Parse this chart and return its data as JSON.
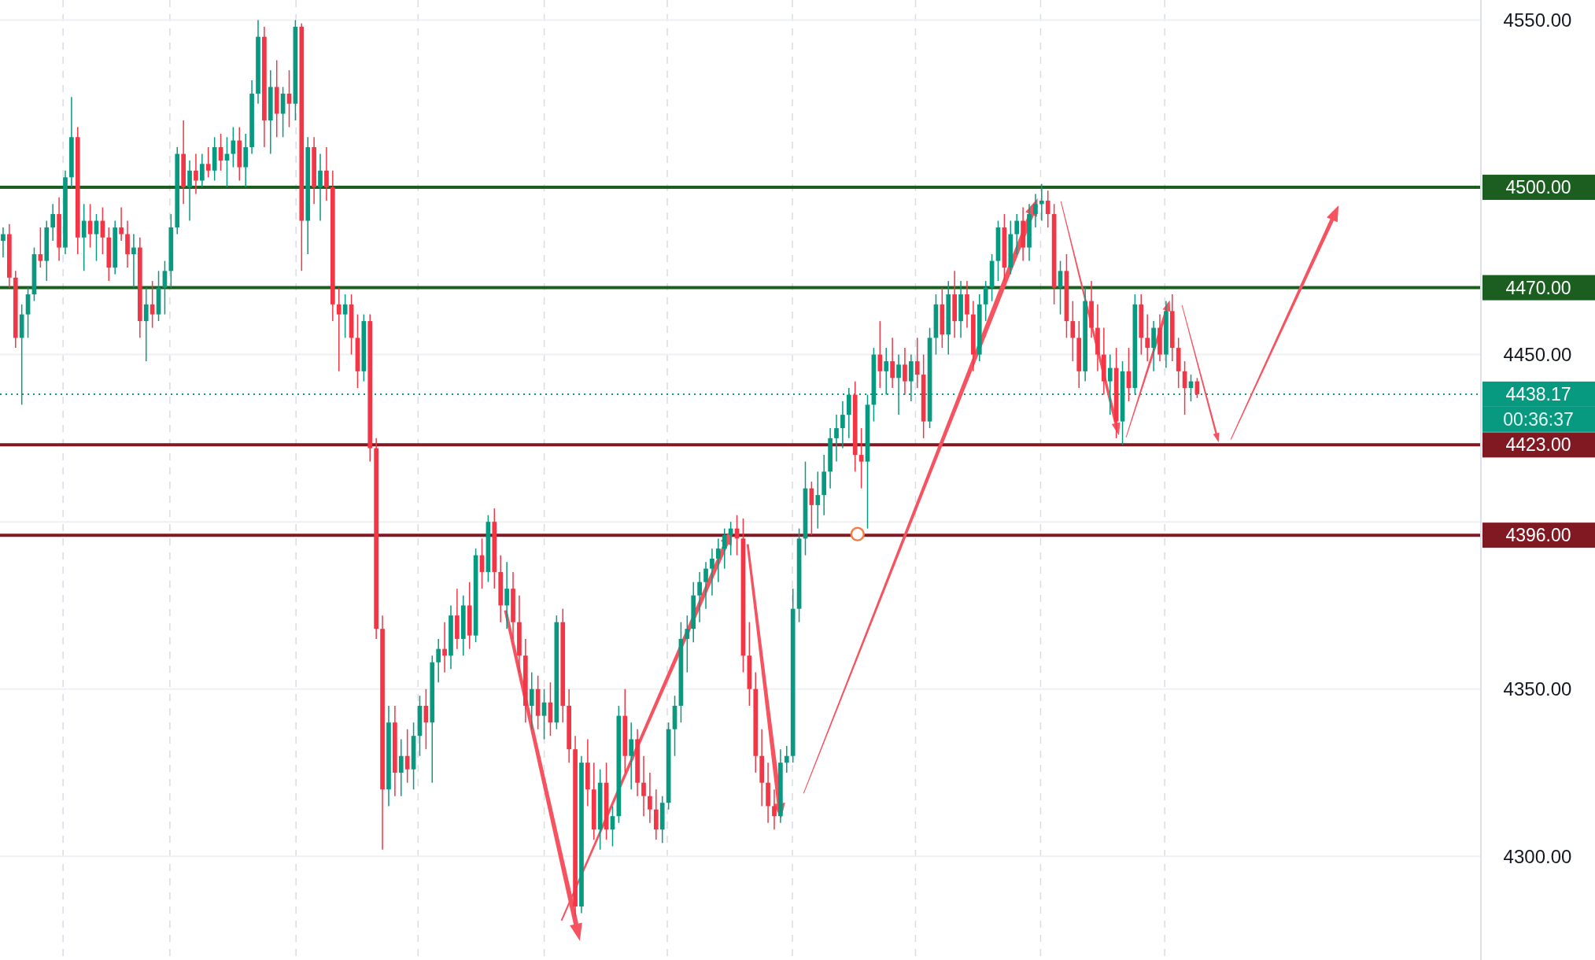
{
  "chart_data": {
    "type": "candlestick",
    "categories": [
      null,
      null,
      null,
      null,
      null,
      null,
      null,
      null,
      null,
      null,
      null,
      null,
      null,
      null,
      null,
      null,
      null,
      null,
      null,
      null,
      null,
      null,
      null,
      null,
      null,
      null,
      null,
      null,
      null,
      null,
      null,
      null,
      null,
      null,
      null,
      null,
      null,
      null,
      null,
      null,
      null,
      null,
      null,
      null,
      null,
      null,
      null,
      null,
      null,
      null,
      null,
      null,
      null,
      null,
      null,
      null,
      null,
      null,
      null,
      null,
      null,
      null,
      null,
      null,
      null,
      null,
      null,
      null,
      null,
      null,
      null,
      null,
      null,
      null,
      null,
      null,
      null,
      null,
      null,
      null,
      null,
      null,
      null,
      null,
      null,
      null,
      null,
      null,
      null,
      null,
      null,
      null,
      null,
      null,
      null,
      null,
      null,
      null,
      null,
      null,
      null,
      null,
      null,
      null,
      null,
      null,
      null,
      null,
      null,
      null,
      null,
      null,
      null,
      null,
      null,
      null,
      null,
      null,
      null,
      null,
      null,
      null,
      null,
      null,
      null,
      null,
      null,
      null,
      null,
      null,
      null,
      null,
      null,
      null,
      null,
      null,
      null,
      null,
      null,
      null,
      null,
      null,
      null,
      null,
      null,
      null,
      null,
      null,
      null,
      null,
      null,
      null,
      null,
      null,
      null,
      null,
      null,
      null,
      null,
      null,
      null,
      null,
      null,
      null,
      null,
      null,
      null,
      null,
      null,
      null,
      null,
      null,
      null,
      null,
      null,
      null,
      null,
      null,
      null,
      null,
      null,
      null,
      null,
      null,
      null,
      null,
      null,
      null,
      null,
      null,
      null,
      null,
      null,
      null,
      null,
      null,
      null,
      null,
      null,
      null,
      null,
      null,
      null,
      null,
      null,
      null,
      null,
      null,
      null,
      null,
      null,
      null,
      null,
      null,
      null,
      null,
      null,
      null,
      null,
      null,
      null,
      null,
      null,
      null,
      null,
      null,
      null,
      null,
      null,
      null,
      null,
      null,
      null,
      null,
      null,
      null,
      null,
      null
    ],
    "ohlc": [
      [
        4484,
        4488,
        4479,
        4486
      ],
      [
        4486,
        4489,
        4470,
        4473
      ],
      [
        4473,
        4475,
        4452,
        4455
      ],
      [
        4455,
        4465,
        4435,
        4462
      ],
      [
        4462,
        4470,
        4455,
        4468
      ],
      [
        4468,
        4482,
        4466,
        4480
      ],
      [
        4480,
        4488,
        4476,
        4478
      ],
      [
        4478,
        4490,
        4472,
        4488
      ],
      [
        4488,
        4495,
        4484,
        4492
      ],
      [
        4492,
        4497,
        4478,
        4482
      ],
      [
        4482,
        4505,
        4480,
        4503
      ],
      [
        4503,
        4527,
        4500,
        4515
      ],
      [
        4515,
        4518,
        4480,
        4485
      ],
      [
        4485,
        4495,
        4475,
        4490
      ],
      [
        4490,
        4495,
        4482,
        4486
      ],
      [
        4486,
        4492,
        4478,
        4490
      ],
      [
        4490,
        4494,
        4480,
        4485
      ],
      [
        4485,
        4488,
        4472,
        4476
      ],
      [
        4476,
        4490,
        4474,
        4488
      ],
      [
        4488,
        4494,
        4484,
        4486
      ],
      [
        4486,
        4490,
        4476,
        4480
      ],
      [
        4480,
        4486,
        4470,
        4482
      ],
      [
        4482,
        4485,
        4455,
        4460
      ],
      [
        4460,
        4470,
        4448,
        4465
      ],
      [
        4465,
        4472,
        4458,
        4462
      ],
      [
        4462,
        4475,
        4460,
        4470
      ],
      [
        4470,
        4478,
        4462,
        4475
      ],
      [
        4475,
        4492,
        4470,
        4488
      ],
      [
        4488,
        4512,
        4486,
        4510
      ],
      [
        4510,
        4520,
        4495,
        4500
      ],
      [
        4500,
        4508,
        4490,
        4505
      ],
      [
        4505,
        4510,
        4498,
        4502
      ],
      [
        4502,
        4510,
        4500,
        4507
      ],
      [
        4507,
        4512,
        4503,
        4505
      ],
      [
        4505,
        4515,
        4502,
        4512
      ],
      [
        4512,
        4516,
        4505,
        4508
      ],
      [
        4508,
        4515,
        4500,
        4510
      ],
      [
        4510,
        4518,
        4506,
        4514
      ],
      [
        4514,
        4518,
        4502,
        4506
      ],
      [
        4506,
        4516,
        4500,
        4512
      ],
      [
        4512,
        4532,
        4510,
        4528
      ],
      [
        4528,
        4550,
        4525,
        4545
      ],
      [
        4545,
        4548,
        4512,
        4520
      ],
      [
        4520,
        4535,
        4510,
        4530
      ],
      [
        4530,
        4538,
        4515,
        4522
      ],
      [
        4522,
        4530,
        4515,
        4528
      ],
      [
        4528,
        4535,
        4518,
        4525
      ],
      [
        4525,
        4550,
        4520,
        4548
      ],
      [
        4548,
        4549,
        4475,
        4490
      ],
      [
        4490,
        4515,
        4480,
        4512
      ],
      [
        4512,
        4515,
        4495,
        4500
      ],
      [
        4500,
        4510,
        4490,
        4505
      ],
      [
        4505,
        4512,
        4496,
        4500
      ],
      [
        4500,
        4505,
        4460,
        4465
      ],
      [
        4465,
        4470,
        4445,
        4462
      ],
      [
        4462,
        4468,
        4455,
        4465
      ],
      [
        4465,
        4468,
        4450,
        4455
      ],
      [
        4455,
        4462,
        4440,
        4445
      ],
      [
        4445,
        4462,
        4442,
        4460
      ],
      [
        4460,
        4462,
        4418,
        4422
      ],
      [
        4422,
        4425,
        4365,
        4368
      ],
      [
        4368,
        4372,
        4302,
        4320
      ],
      [
        4320,
        4345,
        4315,
        4340
      ],
      [
        4340,
        4345,
        4318,
        4325
      ],
      [
        4325,
        4335,
        4318,
        4330
      ],
      [
        4330,
        4338,
        4322,
        4326
      ],
      [
        4326,
        4340,
        4320,
        4336
      ],
      [
        4336,
        4348,
        4330,
        4345
      ],
      [
        4345,
        4350,
        4332,
        4340
      ],
      [
        4340,
        4360,
        4322,
        4358
      ],
      [
        4358,
        4365,
        4352,
        4362
      ],
      [
        4362,
        4370,
        4355,
        4360
      ],
      [
        4360,
        4375,
        4356,
        4372
      ],
      [
        4372,
        4380,
        4362,
        4365
      ],
      [
        4365,
        4378,
        4360,
        4375
      ],
      [
        4375,
        4382,
        4362,
        4366
      ],
      [
        4366,
        4392,
        4364,
        4390
      ],
      [
        4390,
        4395,
        4380,
        4385
      ],
      [
        4385,
        4402,
        4382,
        4400
      ],
      [
        4400,
        4404,
        4380,
        4385
      ],
      [
        4385,
        4390,
        4370,
        4375
      ],
      [
        4375,
        4388,
        4368,
        4380
      ],
      [
        4380,
        4385,
        4365,
        4370
      ],
      [
        4370,
        4378,
        4355,
        4360
      ],
      [
        4360,
        4365,
        4340,
        4345
      ],
      [
        4345,
        4355,
        4338,
        4350
      ],
      [
        4350,
        4354,
        4338,
        4342
      ],
      [
        4342,
        4350,
        4335,
        4346
      ],
      [
        4346,
        4352,
        4336,
        4340
      ],
      [
        4340,
        4372,
        4338,
        4370
      ],
      [
        4370,
        4374,
        4340,
        4345
      ],
      [
        4345,
        4350,
        4328,
        4332
      ],
      [
        4332,
        4336,
        4282,
        4285
      ],
      [
        4285,
        4330,
        4283,
        4328
      ],
      [
        4328,
        4335,
        4315,
        4320
      ],
      [
        4320,
        4328,
        4305,
        4308
      ],
      [
        4308,
        4326,
        4302,
        4322
      ],
      [
        4322,
        4328,
        4305,
        4308
      ],
      [
        4308,
        4315,
        4303,
        4312
      ],
      [
        4312,
        4345,
        4310,
        4342
      ],
      [
        4342,
        4350,
        4325,
        4330
      ],
      [
        4330,
        4340,
        4320,
        4335
      ],
      [
        4335,
        4338,
        4318,
        4322
      ],
      [
        4322,
        4330,
        4312,
        4318
      ],
      [
        4318,
        4325,
        4310,
        4314
      ],
      [
        4314,
        4320,
        4305,
        4308
      ],
      [
        4308,
        4318,
        4304,
        4316
      ],
      [
        4316,
        4340,
        4314,
        4338
      ],
      [
        4338,
        4348,
        4330,
        4345
      ],
      [
        4345,
        4370,
        4340,
        4365
      ],
      [
        4365,
        4372,
        4355,
        4368
      ],
      [
        4368,
        4382,
        4364,
        4378
      ],
      [
        4378,
        4385,
        4370,
        4382
      ],
      [
        4382,
        4388,
        4374,
        4386
      ],
      [
        4386,
        4392,
        4378,
        4389
      ],
      [
        4389,
        4395,
        4382,
        4392
      ],
      [
        4392,
        4398,
        4386,
        4396
      ],
      [
        4396,
        4400,
        4390,
        4398
      ],
      [
        4398,
        4402,
        4390,
        4395
      ],
      [
        4395,
        4401,
        4355,
        4360
      ],
      [
        4360,
        4370,
        4345,
        4350
      ],
      [
        4350,
        4355,
        4325,
        4330
      ],
      [
        4330,
        4338,
        4315,
        4322
      ],
      [
        4322,
        4328,
        4310,
        4315
      ],
      [
        4315,
        4320,
        4308,
        4312
      ],
      [
        4312,
        4332,
        4310,
        4328
      ],
      [
        4328,
        4333,
        4325,
        4330
      ],
      [
        4330,
        4380,
        4328,
        4374
      ],
      [
        4374,
        4398,
        4370,
        4395
      ],
      [
        4395,
        4418,
        4390,
        4410
      ],
      [
        4410,
        4412,
        4396,
        4405
      ],
      [
        4405,
        4415,
        4398,
        4408
      ],
      [
        4408,
        4420,
        4402,
        4415
      ],
      [
        4415,
        4428,
        4410,
        4425
      ],
      [
        4425,
        4432,
        4418,
        4428
      ],
      [
        4428,
        4436,
        4422,
        4432
      ],
      [
        4432,
        4440,
        4425,
        4438
      ],
      [
        4438,
        4442,
        4415,
        4420
      ],
      [
        4420,
        4428,
        4410,
        4418
      ],
      [
        4418,
        4438,
        4398,
        4435
      ],
      [
        4435,
        4452,
        4430,
        4450
      ],
      [
        4450,
        4460,
        4440,
        4445
      ],
      [
        4445,
        4452,
        4438,
        4448
      ],
      [
        4448,
        4455,
        4440,
        4443
      ],
      [
        4443,
        4450,
        4432,
        4447
      ],
      [
        4447,
        4452,
        4438,
        4442
      ],
      [
        4442,
        4450,
        4436,
        4448
      ],
      [
        4448,
        4455,
        4440,
        4444
      ],
      [
        4444,
        4450,
        4425,
        4430
      ],
      [
        4430,
        4458,
        4428,
        4455
      ],
      [
        4455,
        4468,
        4450,
        4465
      ],
      [
        4465,
        4470,
        4452,
        4456
      ],
      [
        4456,
        4472,
        4450,
        4468
      ],
      [
        4468,
        4475,
        4455,
        4460
      ],
      [
        4460,
        4472,
        4455,
        4468
      ],
      [
        4468,
        4472,
        4458,
        4462
      ],
      [
        4462,
        4466,
        4445,
        4450
      ],
      [
        4450,
        4468,
        4448,
        4465
      ],
      [
        4465,
        4472,
        4460,
        4470
      ],
      [
        4470,
        4480,
        4466,
        4478
      ],
      [
        4478,
        4490,
        4472,
        4488
      ],
      [
        4488,
        4492,
        4472,
        4476
      ],
      [
        4476,
        4490,
        4474,
        4486
      ],
      [
        4486,
        4492,
        4480,
        4490
      ],
      [
        4490,
        4494,
        4478,
        4482
      ],
      [
        4482,
        4495,
        4478,
        4492
      ],
      [
        4492,
        4498,
        4488,
        4495
      ],
      [
        4495,
        4501,
        4490,
        4496
      ],
      [
        4496,
        4499,
        4488,
        4492
      ],
      [
        4492,
        4495,
        4465,
        4470
      ],
      [
        4470,
        4478,
        4462,
        4475
      ],
      [
        4475,
        4480,
        4455,
        4460
      ],
      [
        4460,
        4466,
        4448,
        4455
      ],
      [
        4455,
        4460,
        4440,
        4445
      ],
      [
        4445,
        4470,
        4442,
        4466
      ],
      [
        4466,
        4472,
        4455,
        4458
      ],
      [
        4458,
        4465,
        4445,
        4450
      ],
      [
        4450,
        4458,
        4438,
        4442
      ],
      [
        4442,
        4450,
        4432,
        4446
      ],
      [
        4446,
        4452,
        4425,
        4430
      ],
      [
        4430,
        4448,
        4423,
        4445
      ],
      [
        4445,
        4452,
        4436,
        4440
      ],
      [
        4440,
        4468,
        4438,
        4465
      ],
      [
        4465,
        4468,
        4450,
        4455
      ],
      [
        4455,
        4462,
        4448,
        4452
      ],
      [
        4452,
        4460,
        4445,
        4458
      ],
      [
        4458,
        4462,
        4448,
        4450
      ],
      [
        4450,
        4466,
        4446,
        4463
      ],
      [
        4463,
        4468,
        4448,
        4452
      ],
      [
        4452,
        4455,
        4440,
        4445
      ],
      [
        4445,
        4448,
        4432,
        4440
      ],
      [
        4440,
        4444,
        4436,
        4442
      ],
      [
        4442,
        4443,
        4437,
        4438.17
      ],
      null,
      null,
      null,
      null,
      null,
      null,
      null,
      null,
      null,
      null,
      null,
      null,
      null,
      null,
      null,
      null,
      null,
      null,
      null,
      null,
      null,
      null,
      null,
      null,
      null,
      null,
      null,
      null,
      null,
      null,
      null,
      null,
      null,
      null,
      null,
      null,
      null,
      null,
      null,
      null,
      null,
      null,
      null,
      null,
      null
    ],
    "ylim": [
      4269,
      4556
    ],
    "yticks": [
      {
        "value": 4300,
        "label": "4300.00"
      },
      {
        "value": 4350,
        "label": "4350.00"
      },
      {
        "value": 4400,
        "label": null
      },
      {
        "value": 4450,
        "label": "4450.00"
      },
      {
        "value": 4500,
        "label": null
      },
      {
        "value": 4550,
        "label": "4550.00"
      }
    ],
    "ref_lines": [
      {
        "axis": "y",
        "value": 4500,
        "label": "4500.00",
        "color": "#1b5e20"
      },
      {
        "axis": "y",
        "value": 4470,
        "label": "4470.00",
        "color": "#1b5e20"
      },
      {
        "axis": "y",
        "value": 4438.17,
        "label": "4438.17",
        "color": "#089981",
        "line_style": "dotted"
      },
      {
        "axis": "y",
        "value": 4423,
        "label": "4423.00",
        "color": "#801922"
      },
      {
        "axis": "y",
        "value": 4396,
        "label": "4396.00",
        "color": "#801922"
      }
    ],
    "annotations": [
      "00:36:37"
    ],
    "grid": "y",
    "tick_labels": "y"
  }
}
